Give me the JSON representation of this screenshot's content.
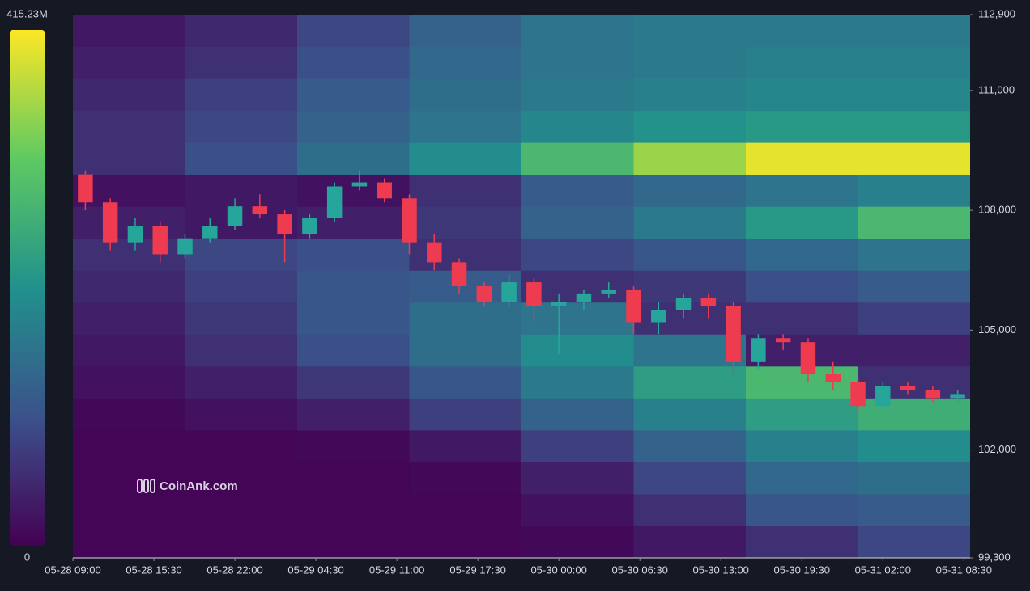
{
  "chart_data": {
    "type": "heatmap",
    "xlim": [
      "05-28 09:00",
      "05-31 09:00"
    ],
    "ylim": [
      99300,
      112900
    ],
    "xticks": [
      "05-28 09:00",
      "05-28 15:30",
      "05-28 22:00",
      "05-29 04:30",
      "05-29 11:00",
      "05-29 17:30",
      "05-30 00:00",
      "05-30 06:30",
      "05-30 13:00",
      "05-30 19:30",
      "05-31 02:00",
      "05-31 08:30"
    ],
    "yticks": [
      {
        "value": 112900,
        "label": "112,900"
      },
      {
        "value": 111000,
        "label": "111,000"
      },
      {
        "value": 108000,
        "label": "108,000"
      },
      {
        "value": 105000,
        "label": "105,000"
      },
      {
        "value": 102000,
        "label": "102,000"
      },
      {
        "value": 99300,
        "label": "99,300"
      }
    ],
    "colorbar": {
      "colors": [
        "#440154",
        "#3b528b",
        "#21918c",
        "#5ec962",
        "#fde725"
      ],
      "clim": [
        0,
        415.23
      ],
      "ticks": [
        {
          "value": 415.23,
          "label": "415.23M"
        },
        0
      ]
    },
    "watermark": "CoinAnk.com",
    "heatmap": {
      "x": [
        "05-28 09:00",
        "05-28 18:00",
        "05-29 03:00",
        "05-29 12:00",
        "05-29 21:00",
        "05-30 06:00",
        "05-30 15:00",
        "05-31 00:00"
      ],
      "levels": [
        99300,
        100100,
        100900,
        101700,
        102500,
        103300,
        104100,
        104900,
        105700,
        106500,
        107300,
        108100,
        108900,
        109700,
        110500,
        111300,
        112100,
        112900
      ],
      "values": [
        [
          5,
          5,
          5,
          5,
          10,
          30,
          60,
          90
        ],
        [
          5,
          5,
          5,
          5,
          20,
          60,
          110,
          120
        ],
        [
          5,
          5,
          5,
          10,
          40,
          90,
          140,
          150
        ],
        [
          5,
          5,
          10,
          30,
          80,
          130,
          180,
          200
        ],
        [
          10,
          20,
          40,
          80,
          130,
          180,
          230,
          260
        ],
        [
          20,
          40,
          70,
          110,
          170,
          230,
          280,
          60
        ],
        [
          30,
          60,
          100,
          150,
          200,
          160,
          40,
          40
        ],
        [
          40,
          70,
          110,
          150,
          160,
          60,
          60,
          80
        ],
        [
          50,
          80,
          110,
          120,
          60,
          70,
          100,
          120
        ],
        [
          60,
          90,
          100,
          60,
          90,
          110,
          140,
          160
        ],
        [
          40,
          30,
          40,
          70,
          130,
          170,
          220,
          280
        ],
        [
          20,
          30,
          20,
          60,
          120,
          140,
          160,
          180
        ],
        [
          60,
          100,
          150,
          200,
          280,
          350,
          400,
          400
        ],
        [
          60,
          90,
          130,
          160,
          190,
          210,
          220,
          220
        ],
        [
          50,
          80,
          120,
          150,
          170,
          180,
          190,
          190
        ],
        [
          40,
          60,
          100,
          140,
          160,
          170,
          180,
          180
        ],
        [
          30,
          50,
          90,
          130,
          160,
          170,
          170,
          170
        ]
      ]
    },
    "candles": {
      "up_color": "#26a69a",
      "down_color": "#ef3b4f",
      "x": [
        "05-28 09:00",
        "05-28 11:00",
        "05-28 13:00",
        "05-28 15:00",
        "05-28 17:00",
        "05-28 19:00",
        "05-28 21:00",
        "05-28 23:00",
        "05-29 01:00",
        "05-29 03:00",
        "05-29 05:00",
        "05-29 07:00",
        "05-29 09:00",
        "05-29 11:00",
        "05-29 13:00",
        "05-29 15:00",
        "05-29 17:00",
        "05-29 19:00",
        "05-29 21:00",
        "05-29 23:00",
        "05-30 01:00",
        "05-30 03:00",
        "05-30 05:00",
        "05-30 07:00",
        "05-30 09:00",
        "05-30 11:00",
        "05-30 13:00",
        "05-30 15:00",
        "05-30 17:00",
        "05-30 19:00",
        "05-30 21:00",
        "05-30 23:00",
        "05-31 01:00",
        "05-31 03:00",
        "05-31 05:00",
        "05-31 07:00"
      ],
      "open": [
        108900,
        108200,
        107200,
        107600,
        106900,
        107300,
        107600,
        108100,
        107900,
        107400,
        107800,
        108600,
        108700,
        108300,
        107200,
        106700,
        106100,
        105700,
        106200,
        105600,
        105700,
        105900,
        106000,
        105200,
        105500,
        105800,
        105600,
        104200,
        104800,
        104700,
        103900,
        103700,
        103100,
        103600,
        103500,
        103300
      ],
      "high": [
        109000,
        108300,
        107800,
        107700,
        107400,
        107800,
        108300,
        108400,
        108000,
        107900,
        108700,
        109000,
        108800,
        108400,
        107400,
        106800,
        106200,
        106400,
        106300,
        105900,
        106000,
        106200,
        106100,
        105700,
        105900,
        105900,
        105700,
        104900,
        104900,
        104800,
        104200,
        103800,
        103700,
        103700,
        103600,
        103500
      ],
      "low": [
        108000,
        107000,
        107000,
        106700,
        106800,
        107200,
        107500,
        107800,
        106700,
        107300,
        107700,
        108500,
        108200,
        106900,
        106500,
        105900,
        105600,
        105600,
        105200,
        104400,
        105500,
        105800,
        104900,
        104900,
        105300,
        105300,
        103900,
        104000,
        104500,
        103700,
        103500,
        102900,
        103000,
        103400,
        103200,
        103200
      ],
      "close": [
        108200,
        107200,
        107600,
        106900,
        107300,
        107600,
        108100,
        107900,
        107400,
        107800,
        108600,
        108700,
        108300,
        107200,
        106700,
        106100,
        105700,
        106200,
        105600,
        105700,
        105900,
        106000,
        105200,
        105500,
        105800,
        105600,
        104200,
        104800,
        104700,
        103900,
        103700,
        103100,
        103600,
        103500,
        103300,
        103400
      ]
    }
  }
}
